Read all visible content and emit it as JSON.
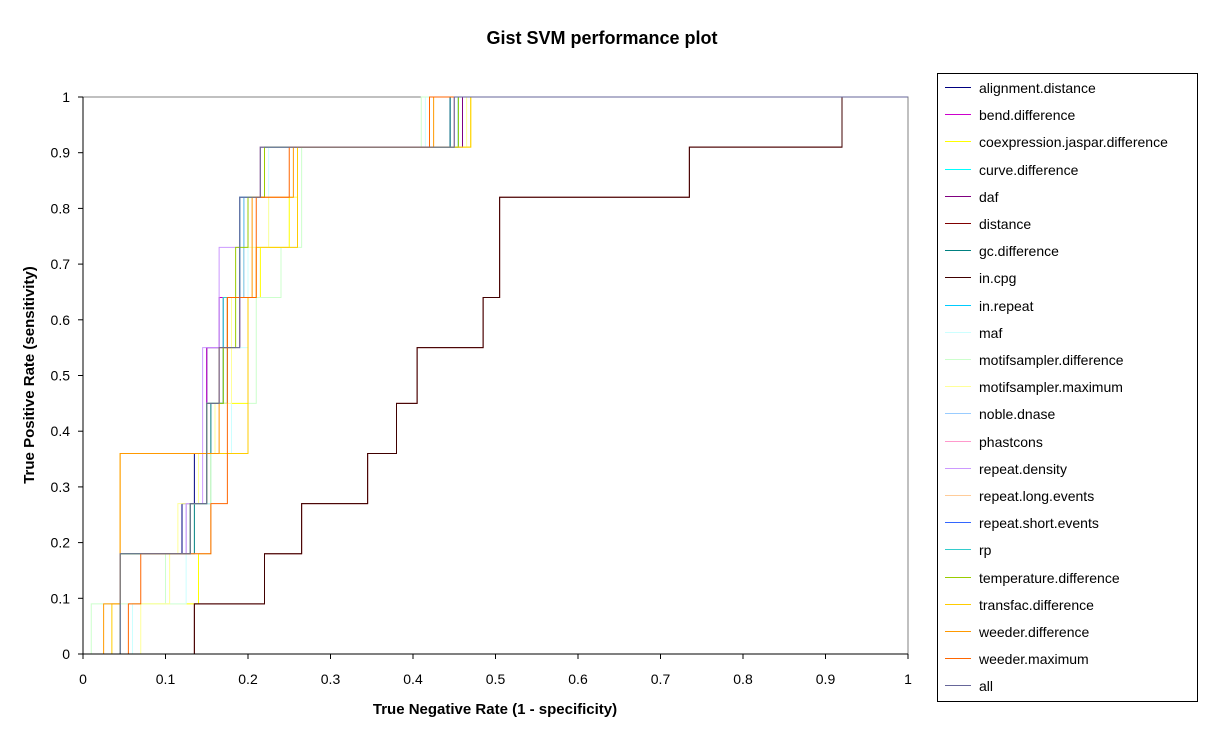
{
  "chart_data": {
    "type": "line",
    "title": "Gist SVM performance plot",
    "xlabel": "True Negative Rate (1 - specificity)",
    "ylabel": "True Positive Rate (sensitivity)",
    "xlim": [
      0,
      1
    ],
    "ylim": [
      0,
      1
    ],
    "x_ticks": [
      "0",
      "0.1",
      "0.2",
      "0.3",
      "0.4",
      "0.5",
      "0.6",
      "0.7",
      "0.8",
      "0.9",
      "1"
    ],
    "y_ticks": [
      "0",
      "0.1",
      "0.2",
      "0.3",
      "0.4",
      "0.5",
      "0.6",
      "0.7",
      "0.8",
      "0.9",
      "1"
    ],
    "grid": false,
    "legend_position": "right",
    "series": [
      {
        "name": "alignment.distance",
        "color": "#000080",
        "x": [
          0.0,
          0.045,
          0.045,
          0.12,
          0.12,
          0.135,
          0.135,
          0.15,
          0.15,
          0.165,
          0.165,
          0.19,
          0.19,
          0.215,
          0.215,
          0.24,
          0.24,
          0.445,
          0.445,
          0.465,
          0.465,
          1.0
        ],
        "y": [
          0.0,
          0.0,
          0.18,
          0.18,
          0.27,
          0.27,
          0.36,
          0.36,
          0.55,
          0.55,
          0.64,
          0.64,
          0.82,
          0.82,
          0.91,
          0.91,
          0.91,
          0.91,
          1.0,
          1.0,
          1.0,
          1.0
        ]
      },
      {
        "name": "bend.difference",
        "color": "#cc00cc",
        "x": [
          0.0,
          0.045,
          0.045,
          0.13,
          0.13,
          0.15,
          0.15,
          0.165,
          0.165,
          0.19,
          0.19,
          0.215,
          0.215,
          0.245,
          0.245,
          0.45,
          0.45,
          1.0
        ],
        "y": [
          0.0,
          0.0,
          0.18,
          0.18,
          0.27,
          0.27,
          0.55,
          0.55,
          0.64,
          0.64,
          0.82,
          0.82,
          0.91,
          0.91,
          0.91,
          0.91,
          1.0,
          1.0
        ]
      },
      {
        "name": "coexpression.jaspar.difference",
        "color": "#ffff00",
        "x": [
          0.0,
          0.06,
          0.06,
          0.14,
          0.14,
          0.155,
          0.155,
          0.18,
          0.18,
          0.2,
          0.2,
          0.215,
          0.215,
          0.25,
          0.25,
          0.26,
          0.26,
          0.47,
          0.47,
          1.0
        ],
        "y": [
          0.0,
          0.0,
          0.09,
          0.09,
          0.18,
          0.18,
          0.36,
          0.36,
          0.45,
          0.45,
          0.64,
          0.64,
          0.73,
          0.73,
          0.82,
          0.82,
          0.91,
          0.91,
          1.0,
          1.0
        ]
      },
      {
        "name": "curve.difference",
        "color": "#00ffff",
        "x": [
          0.0,
          0.045,
          0.045,
          0.13,
          0.13,
          0.15,
          0.15,
          0.17,
          0.17,
          0.195,
          0.195,
          0.22,
          0.22,
          0.455,
          0.455,
          1.0
        ],
        "y": [
          0.0,
          0.0,
          0.18,
          0.18,
          0.27,
          0.27,
          0.45,
          0.45,
          0.64,
          0.64,
          0.82,
          0.82,
          0.91,
          0.91,
          1.0,
          1.0
        ]
      },
      {
        "name": "daf",
        "color": "#800080",
        "x": [
          0.0,
          0.045,
          0.045,
          0.125,
          0.125,
          0.15,
          0.15,
          0.165,
          0.165,
          0.19,
          0.19,
          0.215,
          0.215,
          0.46,
          0.46,
          1.0
        ],
        "y": [
          0.0,
          0.0,
          0.18,
          0.18,
          0.27,
          0.27,
          0.45,
          0.45,
          0.55,
          0.55,
          0.82,
          0.82,
          0.91,
          0.91,
          1.0,
          1.0
        ]
      },
      {
        "name": "distance",
        "color": "#800000",
        "x": [
          0.0,
          0.135,
          0.135,
          0.22,
          0.22,
          0.265,
          0.265,
          0.345,
          0.345,
          0.38,
          0.38,
          0.405,
          0.405,
          0.485,
          0.485,
          0.505,
          0.505,
          0.735,
          0.735,
          0.92,
          0.92,
          1.0
        ],
        "y": [
          0.0,
          0.0,
          0.09,
          0.09,
          0.18,
          0.18,
          0.27,
          0.27,
          0.36,
          0.36,
          0.45,
          0.45,
          0.55,
          0.55,
          0.64,
          0.64,
          0.82,
          0.82,
          0.91,
          0.91,
          1.0,
          1.0
        ]
      },
      {
        "name": "gc.difference",
        "color": "#008080",
        "x": [
          0.0,
          0.045,
          0.045,
          0.135,
          0.135,
          0.155,
          0.155,
          0.175,
          0.175,
          0.195,
          0.195,
          0.215,
          0.215,
          0.445,
          0.445,
          1.0
        ],
        "y": [
          0.0,
          0.0,
          0.18,
          0.18,
          0.27,
          0.27,
          0.45,
          0.45,
          0.64,
          0.64,
          0.82,
          0.82,
          0.91,
          0.91,
          1.0,
          1.0
        ]
      },
      {
        "name": "in.cpg",
        "color": "#400000",
        "x": [
          0.0,
          0.135,
          0.135,
          0.22,
          0.22,
          0.265,
          0.265,
          0.345,
          0.345,
          0.38,
          0.38,
          0.405,
          0.405,
          0.485,
          0.485,
          0.505,
          0.505,
          0.735,
          0.735,
          0.92,
          0.92,
          1.0
        ],
        "y": [
          0.0,
          0.0,
          0.09,
          0.09,
          0.18,
          0.18,
          0.27,
          0.27,
          0.36,
          0.36,
          0.45,
          0.45,
          0.55,
          0.55,
          0.64,
          0.64,
          0.82,
          0.82,
          0.91,
          0.91,
          1.0,
          1.0
        ]
      },
      {
        "name": "in.repeat",
        "color": "#00ccff",
        "x": [
          0.0,
          0.045,
          0.045,
          0.13,
          0.13,
          0.15,
          0.15,
          0.17,
          0.17,
          0.19,
          0.19,
          0.22,
          0.22,
          0.45,
          0.45,
          1.0
        ],
        "y": [
          0.0,
          0.0,
          0.18,
          0.18,
          0.27,
          0.27,
          0.45,
          0.45,
          0.64,
          0.64,
          0.82,
          0.82,
          0.91,
          0.91,
          1.0,
          1.0
        ]
      },
      {
        "name": "maf",
        "color": "#ccffff",
        "x": [
          0.0,
          0.06,
          0.06,
          0.125,
          0.125,
          0.155,
          0.155,
          0.18,
          0.18,
          0.2,
          0.2,
          0.225,
          0.225,
          0.26,
          0.26,
          0.415,
          0.415,
          1.0
        ],
        "y": [
          0.0,
          0.0,
          0.09,
          0.09,
          0.27,
          0.27,
          0.36,
          0.36,
          0.55,
          0.55,
          0.73,
          0.73,
          0.91,
          0.91,
          0.91,
          0.91,
          1.0,
          1.0
        ]
      },
      {
        "name": "motifsampler.difference",
        "color": "#ccffcc",
        "x": [
          0.0,
          0.01,
          0.01,
          0.1,
          0.1,
          0.155,
          0.155,
          0.2,
          0.2,
          0.21,
          0.21,
          0.24,
          0.24,
          0.265,
          0.265,
          0.41,
          0.41,
          1.0
        ],
        "y": [
          0.0,
          0.0,
          0.09,
          0.09,
          0.18,
          0.18,
          0.36,
          0.36,
          0.45,
          0.45,
          0.64,
          0.64,
          0.73,
          0.73,
          0.91,
          0.91,
          1.0,
          1.0
        ]
      },
      {
        "name": "motifsampler.maximum",
        "color": "#ffff99",
        "x": [
          0.0,
          0.07,
          0.07,
          0.105,
          0.105,
          0.115,
          0.115,
          0.14,
          0.14,
          0.16,
          0.16,
          0.18,
          0.18,
          0.195,
          0.195,
          0.225,
          0.225,
          0.26,
          0.26,
          0.465,
          0.465,
          1.0
        ],
        "y": [
          0.0,
          0.0,
          0.09,
          0.09,
          0.18,
          0.18,
          0.27,
          0.27,
          0.36,
          0.36,
          0.45,
          0.45,
          0.64,
          0.64,
          0.73,
          0.73,
          0.82,
          0.82,
          0.91,
          0.91,
          1.0,
          1.0
        ]
      },
      {
        "name": "noble.dnase",
        "color": "#99ccff",
        "x": [
          0.0,
          0.045,
          0.045,
          0.13,
          0.13,
          0.15,
          0.15,
          0.17,
          0.17,
          0.195,
          0.195,
          0.22,
          0.22,
          0.45,
          0.45,
          1.0
        ],
        "y": [
          0.0,
          0.0,
          0.18,
          0.18,
          0.27,
          0.27,
          0.45,
          0.45,
          0.64,
          0.64,
          0.82,
          0.82,
          0.91,
          0.91,
          1.0,
          1.0
        ]
      },
      {
        "name": "phastcons",
        "color": "#ff99cc",
        "x": [
          0.0,
          0.045,
          0.045,
          0.13,
          0.13,
          0.15,
          0.15,
          0.17,
          0.17,
          0.19,
          0.19,
          0.215,
          0.215,
          0.45,
          0.45,
          1.0
        ],
        "y": [
          0.0,
          0.0,
          0.18,
          0.18,
          0.27,
          0.27,
          0.45,
          0.45,
          0.64,
          0.64,
          0.82,
          0.82,
          0.91,
          0.91,
          1.0,
          1.0
        ]
      },
      {
        "name": "repeat.density",
        "color": "#cc99ff",
        "x": [
          0.0,
          0.045,
          0.045,
          0.125,
          0.125,
          0.145,
          0.145,
          0.15,
          0.15,
          0.165,
          0.165,
          0.19,
          0.19,
          0.215,
          0.215,
          0.45,
          0.45,
          1.0
        ],
        "y": [
          0.0,
          0.0,
          0.18,
          0.18,
          0.27,
          0.27,
          0.55,
          0.55,
          0.55,
          0.55,
          0.73,
          0.73,
          0.82,
          0.82,
          0.91,
          0.91,
          1.0,
          1.0
        ]
      },
      {
        "name": "repeat.long.events",
        "color": "#ffcc99",
        "x": [
          0.0,
          0.045,
          0.045,
          0.13,
          0.13,
          0.15,
          0.15,
          0.17,
          0.17,
          0.19,
          0.19,
          0.215,
          0.215,
          0.45,
          0.45,
          1.0
        ],
        "y": [
          0.0,
          0.0,
          0.18,
          0.18,
          0.27,
          0.27,
          0.45,
          0.45,
          0.64,
          0.64,
          0.82,
          0.82,
          0.91,
          0.91,
          1.0,
          1.0
        ]
      },
      {
        "name": "repeat.short.events",
        "color": "#3366ff",
        "x": [
          0.0,
          0.045,
          0.045,
          0.13,
          0.13,
          0.15,
          0.15,
          0.17,
          0.17,
          0.19,
          0.19,
          0.22,
          0.22,
          0.455,
          0.455,
          1.0
        ],
        "y": [
          0.0,
          0.0,
          0.18,
          0.18,
          0.27,
          0.27,
          0.45,
          0.45,
          0.64,
          0.64,
          0.82,
          0.82,
          0.91,
          0.91,
          1.0,
          1.0
        ]
      },
      {
        "name": "rp",
        "color": "#33cccc",
        "x": [
          0.0,
          0.045,
          0.045,
          0.13,
          0.13,
          0.15,
          0.15,
          0.17,
          0.17,
          0.19,
          0.19,
          0.22,
          0.22,
          0.455,
          0.455,
          1.0
        ],
        "y": [
          0.0,
          0.0,
          0.18,
          0.18,
          0.27,
          0.27,
          0.45,
          0.45,
          0.64,
          0.64,
          0.82,
          0.82,
          0.91,
          0.91,
          1.0,
          1.0
        ]
      },
      {
        "name": "temperature.difference",
        "color": "#99cc00",
        "x": [
          0.0,
          0.045,
          0.045,
          0.13,
          0.13,
          0.15,
          0.15,
          0.17,
          0.17,
          0.185,
          0.185,
          0.2,
          0.2,
          0.22,
          0.22,
          0.25,
          0.25,
          0.455,
          0.455,
          1.0
        ],
        "y": [
          0.0,
          0.0,
          0.18,
          0.18,
          0.27,
          0.27,
          0.45,
          0.45,
          0.55,
          0.55,
          0.73,
          0.73,
          0.82,
          0.82,
          0.91,
          0.91,
          0.91,
          0.91,
          1.0,
          1.0
        ]
      },
      {
        "name": "transfac.difference",
        "color": "#ffcc00",
        "x": [
          0.0,
          0.035,
          0.035,
          0.045,
          0.045,
          0.2,
          0.2,
          0.21,
          0.21,
          0.26,
          0.26,
          0.47,
          0.47,
          1.0
        ],
        "y": [
          0.0,
          0.0,
          0.09,
          0.09,
          0.36,
          0.36,
          0.64,
          0.64,
          0.73,
          0.73,
          0.91,
          0.91,
          1.0,
          1.0
        ]
      },
      {
        "name": "weeder.difference",
        "color": "#ff9900",
        "x": [
          0.0,
          0.025,
          0.025,
          0.045,
          0.045,
          0.165,
          0.165,
          0.175,
          0.175,
          0.205,
          0.205,
          0.255,
          0.255,
          0.425,
          0.425,
          1.0
        ],
        "y": [
          0.0,
          0.0,
          0.09,
          0.09,
          0.36,
          0.36,
          0.55,
          0.55,
          0.64,
          0.64,
          0.82,
          0.82,
          0.91,
          0.91,
          1.0,
          1.0
        ]
      },
      {
        "name": "weeder.maximum",
        "color": "#ff6600",
        "x": [
          0.0,
          0.055,
          0.055,
          0.07,
          0.07,
          0.155,
          0.155,
          0.175,
          0.175,
          0.21,
          0.21,
          0.25,
          0.25,
          0.42,
          0.42,
          1.0
        ],
        "y": [
          0.0,
          0.0,
          0.09,
          0.09,
          0.18,
          0.18,
          0.27,
          0.27,
          0.64,
          0.64,
          0.82,
          0.82,
          0.91,
          0.91,
          1.0,
          1.0
        ]
      },
      {
        "name": "all",
        "color": "#666699",
        "x": [
          0.0,
          0.045,
          0.045,
          0.13,
          0.13,
          0.15,
          0.15,
          0.165,
          0.165,
          0.19,
          0.19,
          0.215,
          0.215,
          0.45,
          0.45,
          1.0
        ],
        "y": [
          0.0,
          0.0,
          0.18,
          0.18,
          0.27,
          0.27,
          0.45,
          0.45,
          0.55,
          0.55,
          0.82,
          0.82,
          0.91,
          0.91,
          1.0,
          1.0
        ]
      }
    ]
  }
}
